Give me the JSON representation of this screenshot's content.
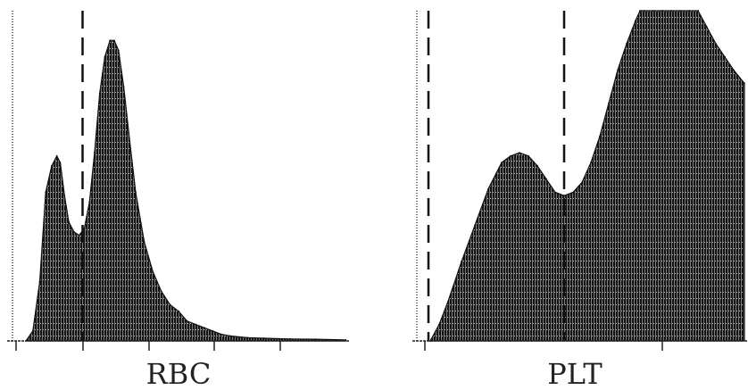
{
  "chart_data": [
    {
      "type": "area",
      "title": "RBC",
      "xlabel": "",
      "ylabel": "",
      "xlim": [
        0,
        400
      ],
      "ylim": [
        0,
        100
      ],
      "fill_color": "#111111",
      "markers": [
        {
          "x": 88,
          "style": "dashed"
        }
      ],
      "x": [
        22,
        30,
        38,
        45,
        52,
        58,
        62,
        67,
        72,
        78,
        84,
        90,
        96,
        102,
        108,
        114,
        120,
        125,
        130,
        136,
        142,
        150,
        160,
        170,
        180,
        190,
        200,
        210,
        220,
        230,
        240,
        250,
        260,
        280,
        300,
        330,
        360,
        395
      ],
      "values": [
        0,
        3,
        18,
        45,
        53,
        56,
        54,
        44,
        36,
        33,
        32,
        34,
        42,
        57,
        75,
        86,
        91,
        91,
        88,
        77,
        63,
        45,
        30,
        21,
        15,
        11,
        9,
        6,
        5,
        4,
        3,
        2,
        1.5,
        1,
        0.8,
        0.6,
        0.5,
        0.3
      ]
    },
    {
      "type": "area",
      "title": "PLT",
      "xlabel": "",
      "ylabel": "",
      "xlim": [
        0,
        400
      ],
      "ylim": [
        0,
        100
      ],
      "fill_color": "#111111",
      "markers": [
        {
          "x": 18,
          "style": "dashed"
        },
        {
          "x": 170,
          "style": "dashed"
        }
      ],
      "x": [
        20,
        30,
        40,
        55,
        70,
        85,
        100,
        110,
        120,
        130,
        140,
        150,
        160,
        170,
        180,
        190,
        200,
        210,
        220,
        230,
        240,
        250,
        255,
        260,
        270,
        280,
        290,
        300,
        310,
        320,
        330,
        340,
        350,
        360,
        372
      ],
      "values": [
        0,
        5,
        12,
        24,
        35,
        46,
        54,
        56,
        57,
        56,
        53,
        49,
        45,
        44,
        45,
        48,
        54,
        62,
        72,
        82,
        90,
        97,
        100,
        100,
        100,
        100,
        100,
        100,
        100,
        100,
        95,
        90,
        86,
        82,
        78
      ]
    }
  ]
}
